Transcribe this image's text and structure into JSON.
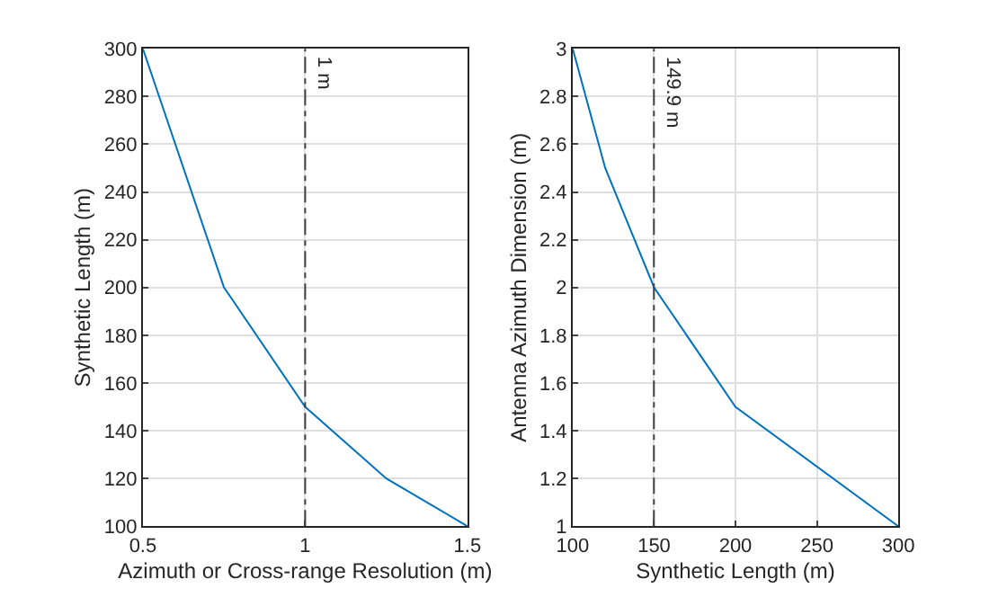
{
  "chart_data": [
    {
      "type": "line",
      "xlabel": "Azimuth or Cross-range Resolution (m)",
      "ylabel": "Synthetic Length (m)",
      "x": [
        0.5,
        0.75,
        1,
        1.25,
        1.5
      ],
      "series": [
        {
          "color": "#0072bd",
          "values": [
            300,
            200,
            150,
            120,
            100
          ]
        }
      ],
      "xlim": [
        0.5,
        1.5
      ],
      "xticks": [
        0.5,
        1,
        1.5
      ],
      "ylim": [
        100,
        300
      ],
      "yticks": [
        100,
        120,
        140,
        160,
        180,
        200,
        220,
        240,
        260,
        280,
        300
      ],
      "grid": true,
      "marker": "none",
      "line_style": "solid",
      "ref_lines": [
        {
          "axis": "x",
          "value": 1,
          "label": "1 m",
          "color": "#404040",
          "line_style": "dashdot"
        }
      ]
    },
    {
      "type": "line",
      "xlabel": "Synthetic Length (m)",
      "ylabel": "Antenna Azimuth Dimension (m)",
      "x": [
        100,
        120,
        150,
        200,
        300
      ],
      "series": [
        {
          "color": "#0072bd",
          "values": [
            3,
            2.5,
            2,
            1.5,
            1
          ]
        }
      ],
      "xlim": [
        100,
        300
      ],
      "xticks": [
        100,
        150,
        200,
        250,
        300
      ],
      "ylim": [
        1,
        3
      ],
      "yticks": [
        1,
        1.2,
        1.4,
        1.6,
        1.8,
        2,
        2.2,
        2.4,
        2.6,
        2.8,
        3
      ],
      "grid": true,
      "marker": "none",
      "line_style": "solid",
      "ref_lines": [
        {
          "axis": "x",
          "value": 149.9,
          "label": "149.9 m",
          "color": "#404040",
          "line_style": "dashdot"
        }
      ]
    }
  ]
}
